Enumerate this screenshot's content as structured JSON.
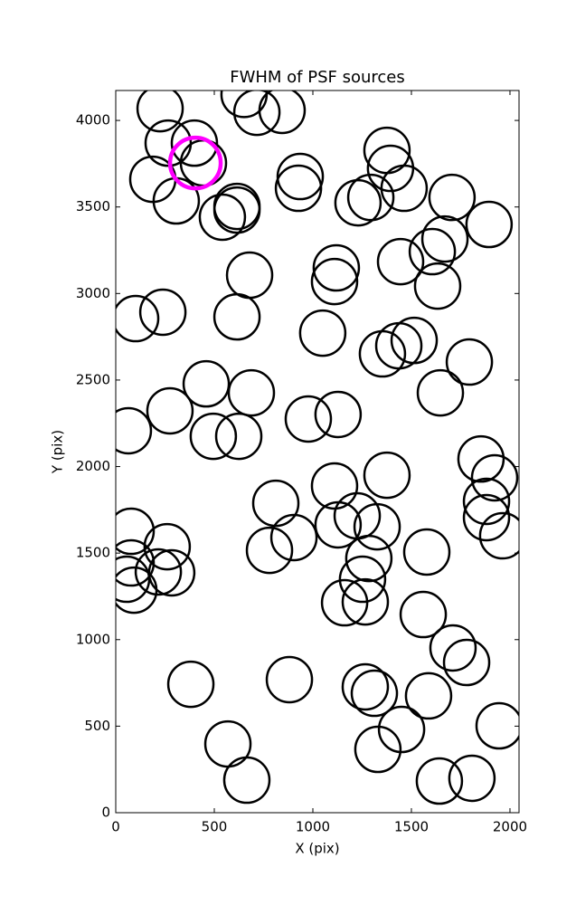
{
  "chart_data": {
    "type": "scatter",
    "title": "FWHM of PSF sources",
    "xlabel": "X (pix)",
    "ylabel": "Y (pix)",
    "xlim": [
      0,
      2046
    ],
    "ylim": [
      0,
      4173
    ],
    "xticks": [
      0,
      500,
      1000,
      1500,
      2000
    ],
    "yticks": [
      0,
      500,
      1000,
      1500,
      2000,
      2500,
      3000,
      3500,
      4000
    ],
    "series": [
      {
        "color": "#000000",
        "x": [
          225,
          266,
          399,
          445,
          188,
          307,
          541,
          615,
          615,
          716,
          844,
          936,
          927,
          1376,
          1394,
          1463,
          1229,
          1294,
          1706,
          1894,
          1670,
          1606,
          1445,
          1633,
          1119,
          1110,
          679,
          615,
          101,
          239,
          1050,
          1514,
          1436,
          1353,
          1794,
          1647,
          459,
          688,
          275,
          495,
          624,
          977,
          1128,
          64,
          1110,
          1376,
          812,
          1853,
          1922,
          1881,
          1881,
          1963,
          78,
          261,
          78,
          216,
          284,
          55,
          92,
          780,
          904,
          1128,
          1225,
          1326,
          1284,
          1252,
          1161,
          1266,
          1578,
          1560,
          1711,
          1780,
          381,
          881,
          1266,
          1312,
          1587,
          1450,
          1330,
          1945,
          569,
          665,
          1642,
          1807,
          651
        ],
        "values": [
          4068,
          3869,
          3869,
          3754,
          3660,
          3535,
          3441,
          3503,
          3482,
          4047,
          4058,
          3676,
          3608,
          3827,
          3723,
          3608,
          3524,
          3555,
          3555,
          3399,
          3315,
          3242,
          3184,
          3043,
          3148,
          3069,
          3106,
          2865,
          2855,
          2892,
          2771,
          2729,
          2698,
          2651,
          2604,
          2426,
          2478,
          2426,
          2322,
          2175,
          2175,
          2275,
          2301,
          2207,
          1888,
          1950,
          1788,
          2044,
          1935,
          1799,
          1705,
          1600,
          1626,
          1537,
          1443,
          1391,
          1386,
          1349,
          1286,
          1516,
          1590,
          1663,
          1715,
          1652,
          1469,
          1349,
          1213,
          1218,
          1506,
          1145,
          952,
          868,
          742,
          769,
          727,
          690,
          675,
          481,
          366,
          502,
          397,
          188,
          183,
          199,
          4150
        ]
      },
      {
        "color": "#ff00ff",
        "x": [
          404
        ],
        "values": [
          3754
        ]
      }
    ]
  }
}
